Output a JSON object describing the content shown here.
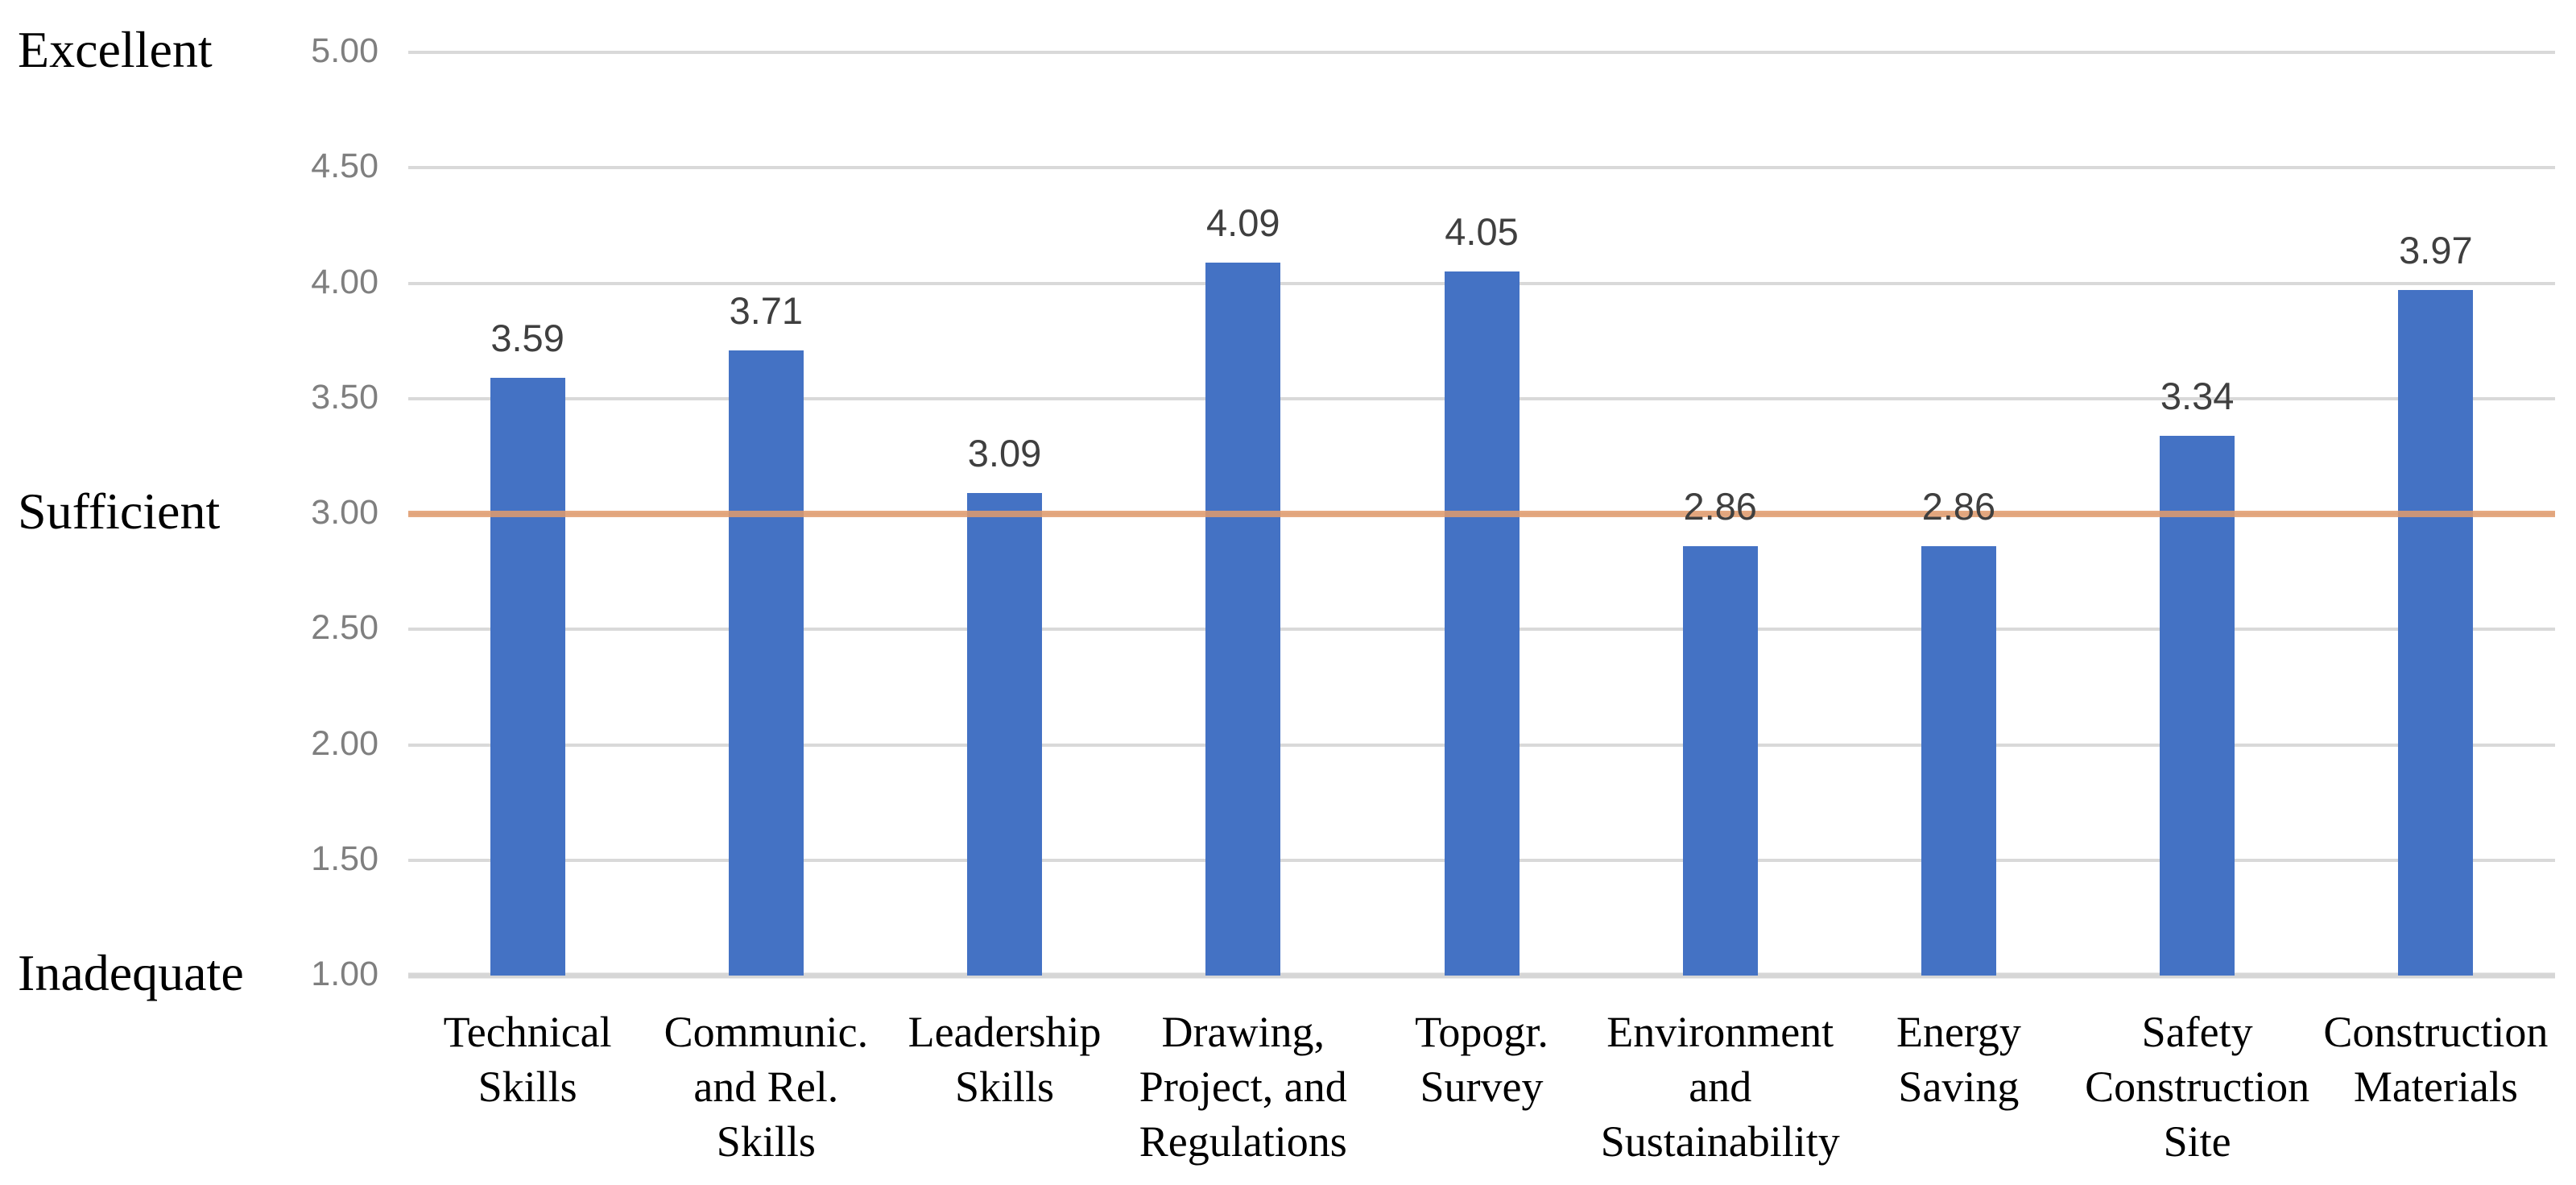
{
  "chart_data": {
    "type": "bar",
    "title": "",
    "xlabel": "",
    "ylabel": "",
    "categories": [
      "Technical Skills",
      "Communic. and Rel. Skills",
      "Leadership Skills",
      "Drawing, Project, and Regulations",
      "Topogr. Survey",
      "Environment and Sustainability",
      "Energy Saving",
      "Safety Construction Site",
      "Construction Materials"
    ],
    "category_lines": [
      [
        "Technical",
        "Skills"
      ],
      [
        "Communic.",
        "and Rel.",
        "Skills"
      ],
      [
        "Leadership",
        "Skills"
      ],
      [
        "Drawing,",
        "Project, and",
        "Regulations"
      ],
      [
        "Topogr.",
        "Survey"
      ],
      [
        "Environment",
        "and",
        "Sustainability"
      ],
      [
        "Energy",
        "Saving"
      ],
      [
        "Safety",
        "Construction",
        "Site"
      ],
      [
        "Construction",
        "Materials"
      ]
    ],
    "values": [
      3.59,
      3.71,
      3.09,
      4.09,
      4.05,
      2.86,
      2.86,
      3.34,
      3.97
    ],
    "value_labels": [
      "3.59",
      "3.71",
      "3.09",
      "4.09",
      "4.05",
      "2.86",
      "2.86",
      "3.34",
      "3.97"
    ],
    "ylim": [
      1.0,
      5.0
    ],
    "ytick_values": [
      5.0,
      4.5,
      4.0,
      3.5,
      3.0,
      2.5,
      2.0,
      1.5,
      1.0
    ],
    "ytick_labels": [
      "5.00",
      "4.50",
      "4.00",
      "3.50",
      "3.00",
      "2.50",
      "2.00",
      "1.50",
      "1.00"
    ],
    "qualitative_labels": [
      {
        "text": "Excellent",
        "value": 5.0
      },
      {
        "text": "Sufficient",
        "value": 3.0
      },
      {
        "text": "Inadequate",
        "value": 1.0
      }
    ],
    "reference_line": {
      "value": 3.0,
      "color": "#e29b6c"
    },
    "bar_color": "#4472c4",
    "gridline_color": "#d9d9d9",
    "grid": true,
    "legend_position": "none"
  }
}
